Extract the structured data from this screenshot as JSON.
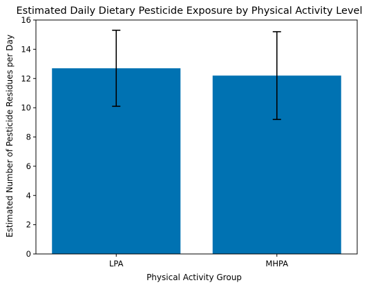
{
  "chart_data": {
    "type": "bar",
    "title": "Estimated Daily Dietary Pesticide Exposure by Physical Activity Level",
    "xlabel": "Physical Activity Group",
    "ylabel": "Estimated Number of Pesticide Residues per Day",
    "categories": [
      "LPA",
      "MHPA"
    ],
    "values": [
      12.7,
      12.2
    ],
    "error_low": [
      10.1,
      9.2
    ],
    "error_high": [
      15.3,
      15.2
    ],
    "ylim": [
      0,
      16
    ],
    "yticks": [
      0,
      2,
      4,
      6,
      8,
      10,
      12,
      14,
      16
    ],
    "bar_color": "#0072B2",
    "grid": false,
    "legend": "none"
  }
}
